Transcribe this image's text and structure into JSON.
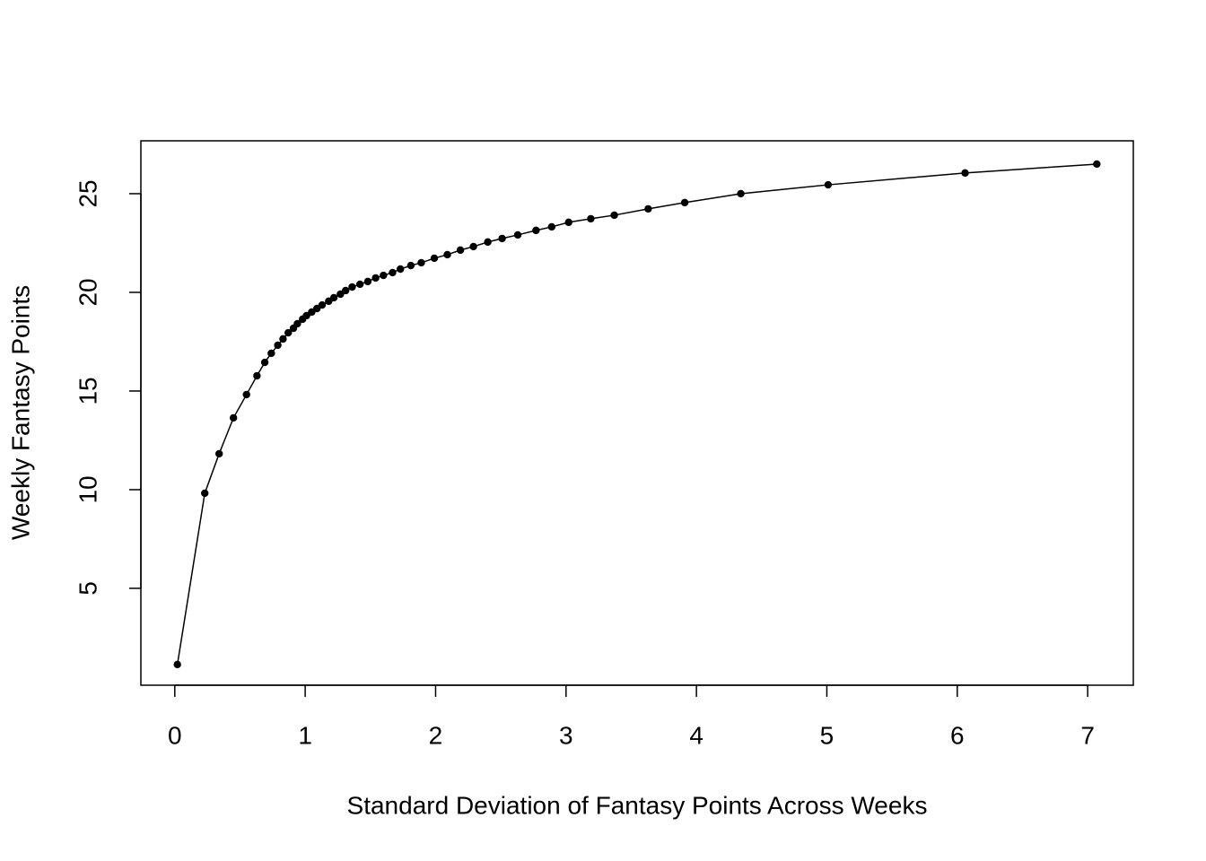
{
  "chart_data": {
    "type": "line",
    "xlabel": "Standard Deviation of Fantasy Points Across Weeks",
    "ylabel": "Weekly Fantasy Points",
    "x": [
      0.02,
      0.23,
      0.34,
      0.45,
      0.55,
      0.63,
      0.69,
      0.74,
      0.79,
      0.83,
      0.87,
      0.91,
      0.94,
      0.98,
      1.01,
      1.05,
      1.09,
      1.13,
      1.18,
      1.22,
      1.27,
      1.31,
      1.36,
      1.42,
      1.48,
      1.54,
      1.6,
      1.67,
      1.73,
      1.81,
      1.89,
      1.99,
      2.09,
      2.19,
      2.29,
      2.4,
      2.51,
      2.63,
      2.77,
      2.89,
      3.02,
      3.19,
      3.37,
      3.63,
      3.91,
      4.34,
      5.01,
      6.06,
      7.07
    ],
    "values": [
      1.14,
      9.82,
      11.82,
      13.64,
      14.82,
      15.77,
      16.45,
      16.91,
      17.32,
      17.64,
      17.95,
      18.18,
      18.41,
      18.64,
      18.82,
      19.0,
      19.18,
      19.36,
      19.55,
      19.73,
      19.91,
      20.09,
      20.27,
      20.41,
      20.55,
      20.73,
      20.86,
      21.0,
      21.18,
      21.36,
      21.5,
      21.73,
      21.91,
      22.14,
      22.32,
      22.55,
      22.73,
      22.91,
      23.14,
      23.32,
      23.55,
      23.73,
      23.91,
      24.23,
      24.55,
      25.0,
      25.45,
      26.05,
      26.5
    ],
    "color": "#000000",
    "xlim": [
      -0.26,
      7.35
    ],
    "ylim": [
      0.09,
      27.68
    ],
    "xticks": [
      0,
      1,
      2,
      3,
      4,
      5,
      6,
      7
    ],
    "yticks": [
      5,
      10,
      15,
      20,
      25
    ],
    "markers": true,
    "grid": false
  }
}
